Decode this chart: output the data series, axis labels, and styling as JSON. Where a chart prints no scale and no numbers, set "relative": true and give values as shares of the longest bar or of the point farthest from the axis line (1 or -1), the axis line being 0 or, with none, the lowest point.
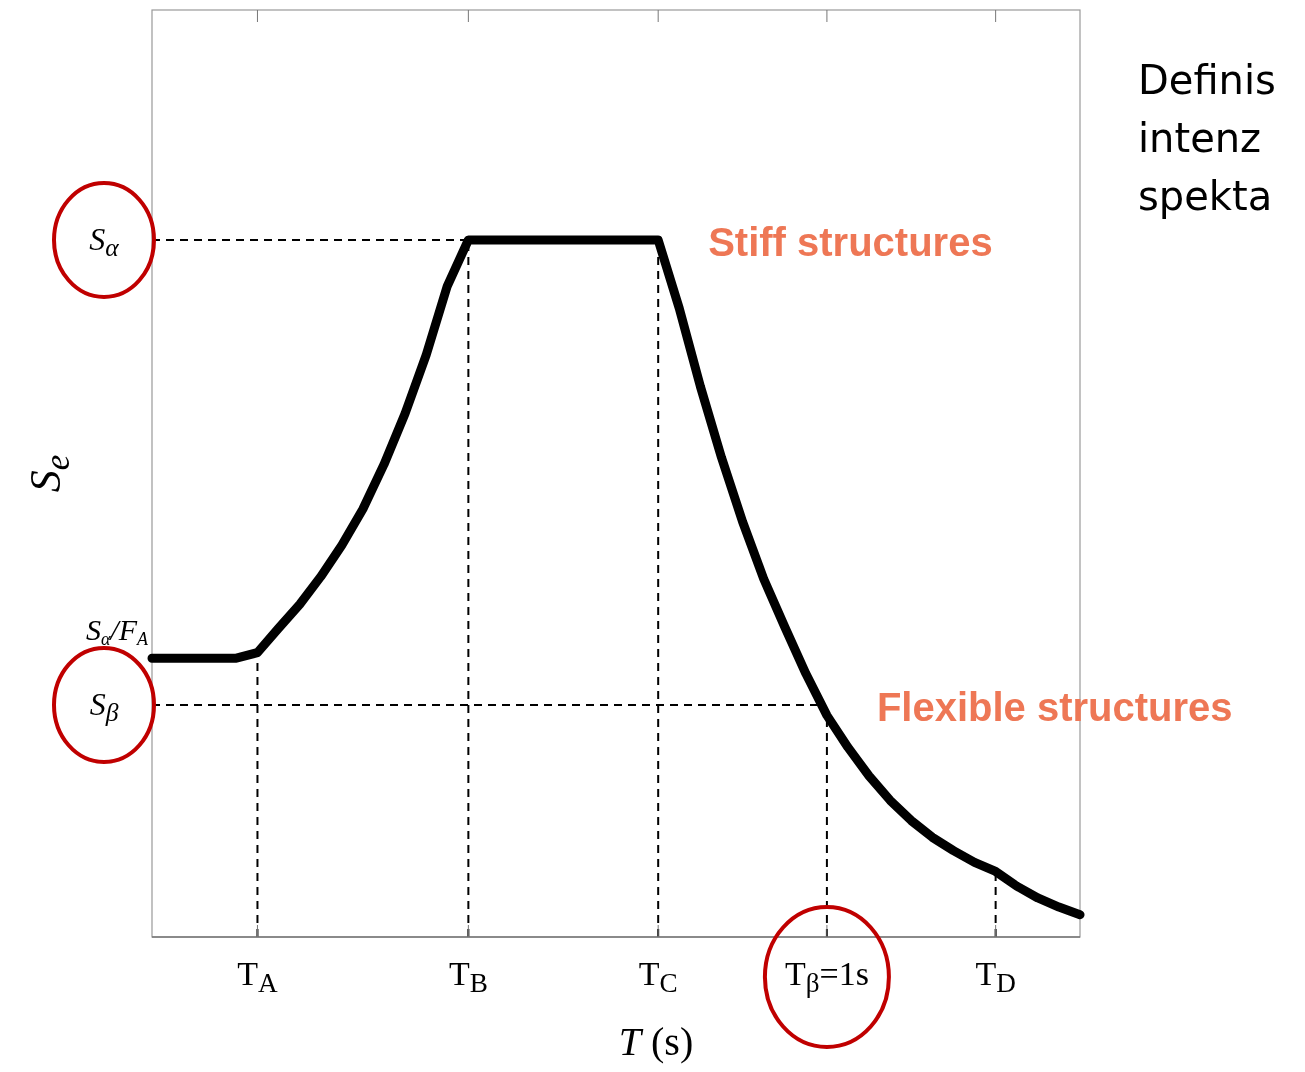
{
  "chart_data": {
    "type": "line",
    "relative": true,
    "xlabel": "T (s)",
    "ylabel": "S$_{e}$",
    "color": "#000000",
    "categories": [
      null,
      null,
      null,
      null,
      null,
      "T$_{A}$",
      null,
      null,
      null,
      null,
      null,
      null,
      null,
      null,
      null,
      "T$_{B}$",
      null,
      null,
      null,
      null,
      null,
      null,
      null,
      null,
      "T$_{C}$",
      null,
      null,
      null,
      null,
      null,
      null,
      null,
      "T$_{β}$=1s",
      null,
      null,
      null,
      null,
      null,
      null,
      null,
      "T$_{D}$",
      null,
      null,
      null,
      null
    ],
    "values": [
      0.4,
      0.4,
      0.4,
      0.4,
      0.4,
      0.408,
      0.443,
      0.477,
      0.517,
      0.562,
      0.614,
      0.678,
      0.751,
      0.835,
      0.934,
      1,
      1,
      1,
      1,
      1,
      1,
      1,
      1,
      1,
      1,
      0.902,
      0.79,
      0.688,
      0.596,
      0.514,
      0.445,
      0.378,
      0.318,
      0.272,
      0.231,
      0.196,
      0.167,
      0.143,
      0.124,
      0.107,
      0.094,
      0.073,
      0.056,
      0.043,
      0.032
    ],
    "ref_lines": [
      {
        "axis": "y",
        "value": 1,
        "label": "S$_{α}$",
        "line_style": "dashed"
      },
      {
        "axis": "y",
        "value": 0.333,
        "label": "S$_{β}$",
        "line_style": "dashed"
      },
      {
        "axis": "x",
        "value": "T$_{A}$",
        "line_style": "dashed"
      },
      {
        "axis": "x",
        "value": "T$_{B}$",
        "line_style": "dashed"
      },
      {
        "axis": "x",
        "value": "T$_{C}$",
        "line_style": "dashed"
      },
      {
        "axis": "x",
        "value": "T$_{β}$=1s",
        "line_style": "dashed"
      },
      {
        "axis": "x",
        "value": "T$_{D}$",
        "line_style": "dashed"
      }
    ],
    "annotations": [
      "S$_{α}$/F$_{A}$",
      {
        "text": "Stiff structures",
        "x": "T$_{C}$",
        "y": 1
      },
      {
        "text": "Flexible structures",
        "x": "T$_{β}$=1s",
        "y": 0.333
      },
      "Definis",
      "intenz",
      "spekta"
    ],
    "grid": false,
    "line_style": "solid"
  }
}
